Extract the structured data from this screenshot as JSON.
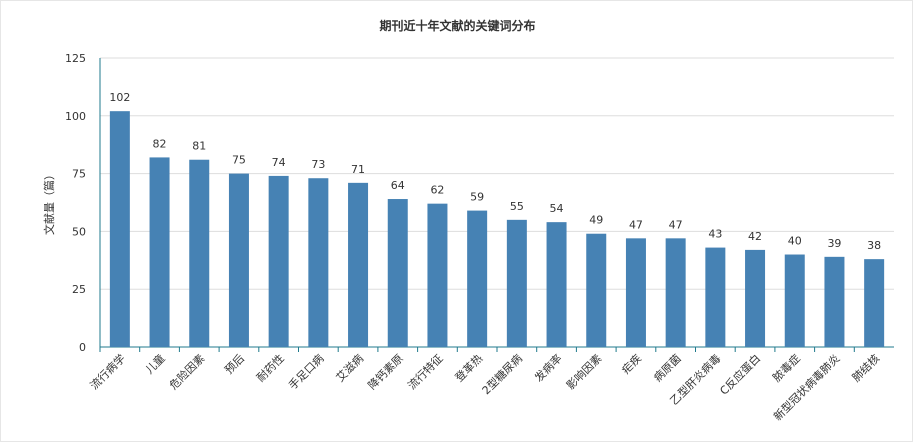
{
  "chart_data": {
    "type": "bar",
    "title": "期刊近十年文献的关键词分布",
    "xlabel": "",
    "ylabel": "文献量（篇）",
    "ylim": [
      0,
      125
    ],
    "yticks": [
      "0",
      "25",
      "50",
      "75",
      "100",
      "125"
    ],
    "grid": true,
    "bar_color": "#4682b4",
    "categories": [
      "流行病学",
      "儿童",
      "危险因素",
      "预后",
      "耐药性",
      "手足口病",
      "艾滋病",
      "降钙素原",
      "流行特征",
      "登革热",
      "2型糖尿病",
      "发病率",
      "影响因素",
      "疟疾",
      "病原菌",
      "乙型肝炎病毒",
      "C反应蛋白",
      "脓毒症",
      "新型冠状病毒肺炎",
      "肺结核"
    ],
    "values": [
      102,
      82,
      81,
      75,
      74,
      73,
      71,
      64,
      62,
      59,
      55,
      54,
      49,
      47,
      47,
      43,
      42,
      40,
      39,
      38
    ]
  }
}
